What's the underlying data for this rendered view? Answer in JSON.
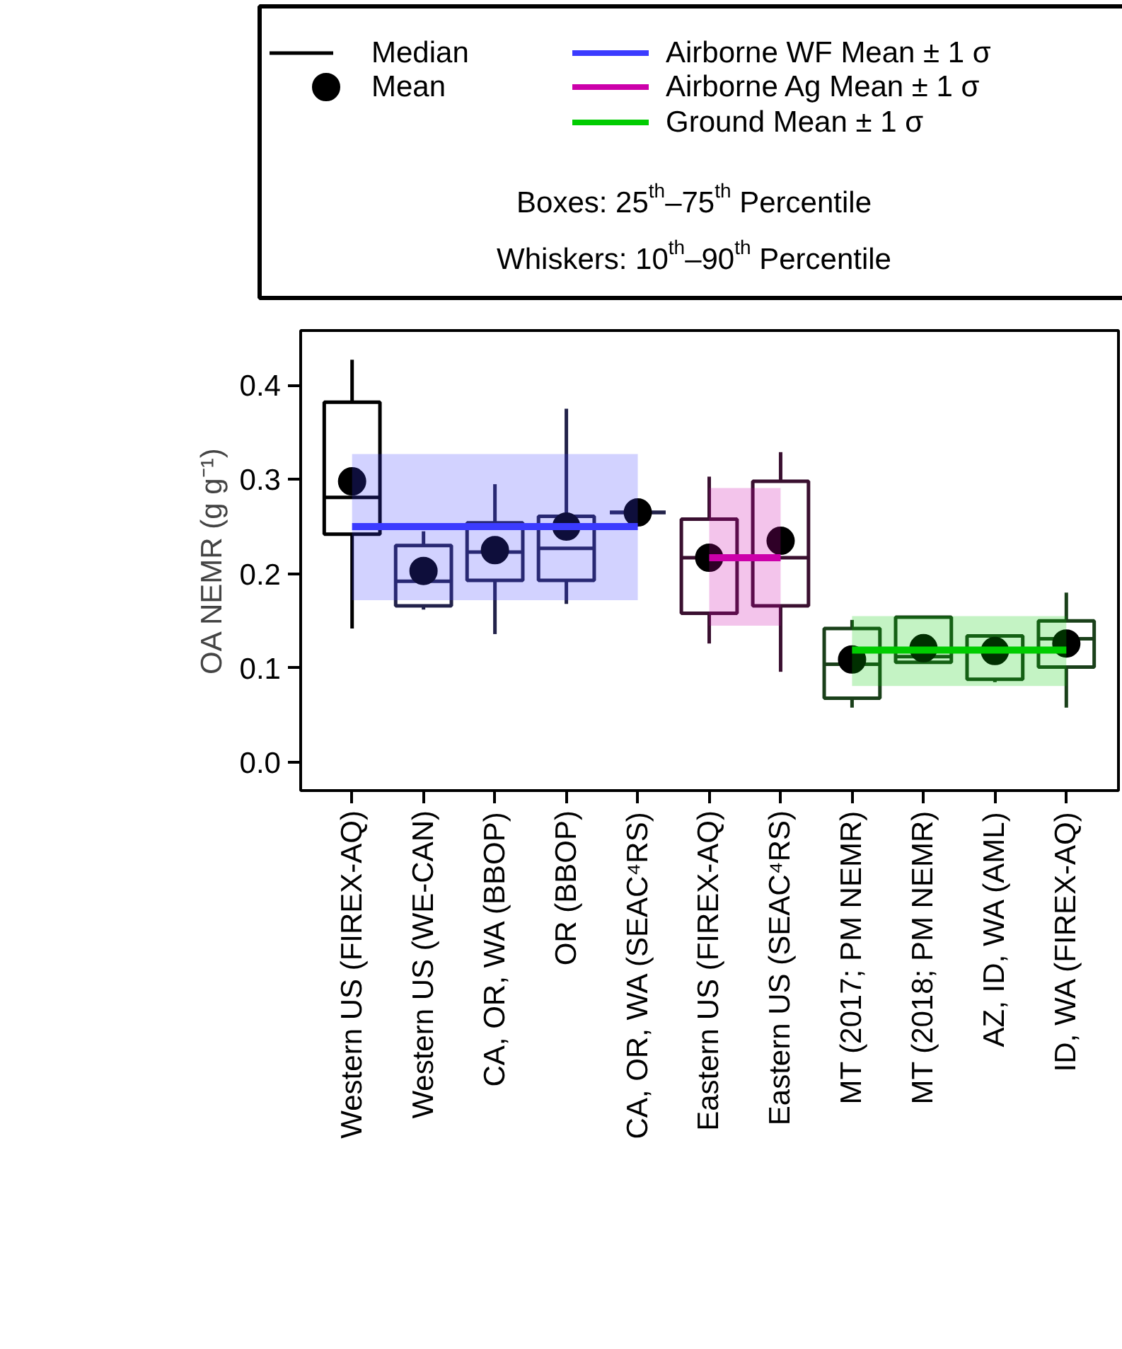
{
  "chart_data": {
    "type": "box",
    "ylabel": "OA NEMR (g g⁻¹)",
    "categories": [
      "Western US (FIREX-AQ)",
      "Western US (WE-CAN)",
      "CA, OR, WA (BBOP)",
      "OR (BBOP)",
      "CA, OR, WA (SEAC⁴RS)",
      "Eastern US (FIREX-AQ)",
      "Eastern US (SEAC⁴RS)",
      "MT (2017; PM NEMR)",
      "MT (2018; PM NEMR)",
      "AZ, ID, WA (AML)",
      "ID, WA (FIREX-AQ)"
    ],
    "ylim": [
      -0.03,
      0.458
    ],
    "yticks": [
      {
        "value": 0,
        "label": "0.0"
      },
      0.1,
      0.2,
      0.3,
      0.4
    ],
    "grid": false,
    "legend": "top",
    "annotations": [
      "Boxes: 25$^{th}$–75$^{th}$ Percentile",
      "Whiskers: 10$^{th}$–90$^{th}$ Percentile"
    ],
    "series": [
      {
        "name": "Median",
        "type": "box",
        "color": "#000000",
        "colors": [
          "#000000",
          "#22224a",
          "#22224a",
          "#22224a",
          "#22224a",
          "#3a1030",
          "#3a1030",
          "#1a401a",
          "#1a401a",
          "#1a401a",
          "#1a401a"
        ],
        "boxes": [
          {
            "low": 0.142,
            "q1": 0.242,
            "median": 0.281,
            "q3": 0.382,
            "high": 0.427
          },
          {
            "low": 0.162,
            "q1": 0.166,
            "median": 0.192,
            "q3": 0.23,
            "high": 0.245
          },
          {
            "low": 0.136,
            "q1": 0.193,
            "median": 0.223,
            "q3": 0.254,
            "high": 0.295
          },
          {
            "low": 0.168,
            "q1": 0.193,
            "median": 0.227,
            "q3": 0.261,
            "high": 0.375
          },
          {
            "low": 0.265,
            "q1": 0.265,
            "median": 0.265,
            "q3": 0.265,
            "high": 0.265
          },
          {
            "low": 0.126,
            "q1": 0.158,
            "median": 0.217,
            "q3": 0.258,
            "high": 0.303
          },
          {
            "low": 0.096,
            "q1": 0.166,
            "median": 0.217,
            "q3": 0.298,
            "high": 0.329
          },
          {
            "low": 0.058,
            "q1": 0.068,
            "median": 0.104,
            "q3": 0.142,
            "high": 0.151
          },
          {
            "low": 0.105,
            "q1": 0.106,
            "median": 0.112,
            "q3": 0.154,
            "high": 0.154
          },
          {
            "low": 0.085,
            "q1": 0.088,
            "median": 0.118,
            "q3": 0.134,
            "high": 0.134
          },
          {
            "low": 0.058,
            "q1": 0.101,
            "median": 0.131,
            "q3": 0.15,
            "high": 0.18
          }
        ]
      },
      {
        "name": "Mean",
        "type": "scatter",
        "color": "#000000",
        "marker": "circle",
        "values": [
          0.298,
          0.203,
          0.225,
          0.25,
          0.265,
          0.217,
          0.235,
          0.109,
          0.121,
          0.118,
          0.126
        ]
      },
      {
        "name": "Airborne WF Mean ± 1 σ",
        "type": "line",
        "color": "#3b3bff",
        "values": [
          0.25,
          0.25,
          0.25,
          0.25,
          0.25,
          null,
          null,
          null,
          null,
          null,
          null
        ],
        "lower": [
          0.172,
          0.172,
          0.172,
          0.172,
          0.172,
          null,
          null,
          null,
          null,
          null,
          null
        ],
        "upper": [
          0.327,
          0.327,
          0.327,
          0.327,
          0.327,
          null,
          null,
          null,
          null,
          null,
          null
        ]
      },
      {
        "name": "Airborne Ag Mean ± 1 σ",
        "type": "line",
        "color": "#cc00aa",
        "values": [
          null,
          null,
          null,
          null,
          null,
          0.217,
          0.217,
          null,
          null,
          null,
          null
        ],
        "lower": [
          null,
          null,
          null,
          null,
          null,
          0.145,
          0.145,
          null,
          null,
          null,
          null
        ],
        "upper": [
          null,
          null,
          null,
          null,
          null,
          0.291,
          0.291,
          null,
          null,
          null,
          null
        ]
      },
      {
        "name": "Ground Mean ± 1 σ",
        "type": "line",
        "color": "#00cc00",
        "values": [
          null,
          null,
          null,
          null,
          null,
          null,
          null,
          0.119,
          0.119,
          0.119,
          0.119
        ],
        "lower": [
          null,
          null,
          null,
          null,
          null,
          null,
          null,
          0.081,
          0.081,
          0.081,
          0.081
        ],
        "upper": [
          null,
          null,
          null,
          null,
          null,
          null,
          null,
          0.155,
          0.155,
          0.155,
          0.155
        ]
      }
    ]
  }
}
